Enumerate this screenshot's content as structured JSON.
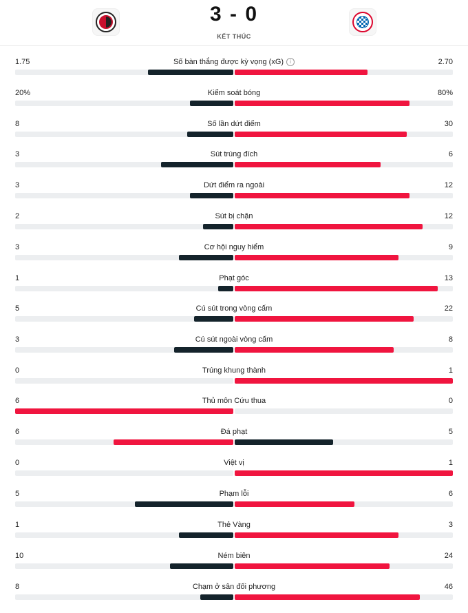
{
  "match": {
    "score": "3 - 0",
    "status": "KẾT THÚC",
    "home_crest_icon": "feyenoord-crest-icon",
    "away_crest_icon": "bayern-munich-crest-icon"
  },
  "colors": {
    "dark": "#14232b",
    "red": "#f0153f",
    "track": "#eceef0"
  },
  "stats": [
    {
      "label": "Số bàn thắng được kỳ vọng (xG)",
      "home": "1.75",
      "away": "2.70",
      "home_fill": 0.39,
      "away_fill": 0.61,
      "home_color": "dark",
      "away_color": "red",
      "info_icon": true
    },
    {
      "label": "Kiểm soát bóng",
      "home": "20%",
      "away": "80%",
      "home_fill": 0.2,
      "away_fill": 0.8,
      "home_color": "dark",
      "away_color": "red"
    },
    {
      "label": "Số lần dứt điểm",
      "home": "8",
      "away": "30",
      "home_fill": 0.21,
      "away_fill": 0.79,
      "home_color": "dark",
      "away_color": "red"
    },
    {
      "label": "Sút trúng đích",
      "home": "3",
      "away": "6",
      "home_fill": 0.33,
      "away_fill": 0.67,
      "home_color": "dark",
      "away_color": "red"
    },
    {
      "label": "Dứt điểm ra ngoài",
      "home": "3",
      "away": "12",
      "home_fill": 0.2,
      "away_fill": 0.8,
      "home_color": "dark",
      "away_color": "red"
    },
    {
      "label": "Sút bị chặn",
      "home": "2",
      "away": "12",
      "home_fill": 0.14,
      "away_fill": 0.86,
      "home_color": "dark",
      "away_color": "red"
    },
    {
      "label": "Cơ hội nguy hiểm",
      "home": "3",
      "away": "9",
      "home_fill": 0.25,
      "away_fill": 0.75,
      "home_color": "dark",
      "away_color": "red"
    },
    {
      "label": "Phạt góc",
      "home": "1",
      "away": "13",
      "home_fill": 0.07,
      "away_fill": 0.93,
      "home_color": "dark",
      "away_color": "red"
    },
    {
      "label": "Cú sút trong vòng cấm",
      "home": "5",
      "away": "22",
      "home_fill": 0.18,
      "away_fill": 0.82,
      "home_color": "dark",
      "away_color": "red"
    },
    {
      "label": "Cú sút ngoài vòng cấm",
      "home": "3",
      "away": "8",
      "home_fill": 0.27,
      "away_fill": 0.73,
      "home_color": "dark",
      "away_color": "red"
    },
    {
      "label": "Trúng khung thành",
      "home": "0",
      "away": "1",
      "home_fill": 0.0,
      "away_fill": 1.0,
      "home_color": "dark",
      "away_color": "red"
    },
    {
      "label": "Thủ môn Cứu thua",
      "home": "6",
      "away": "0",
      "home_fill": 1.0,
      "away_fill": 0.0,
      "home_color": "red",
      "away_color": "dark"
    },
    {
      "label": "Đá phạt",
      "home": "6",
      "away": "5",
      "home_fill": 0.55,
      "away_fill": 0.45,
      "home_color": "red",
      "away_color": "dark"
    },
    {
      "label": "Việt vị",
      "home": "0",
      "away": "1",
      "home_fill": 0.0,
      "away_fill": 1.0,
      "home_color": "dark",
      "away_color": "red"
    },
    {
      "label": "Phạm lỗi",
      "home": "5",
      "away": "6",
      "home_fill": 0.45,
      "away_fill": 0.55,
      "home_color": "dark",
      "away_color": "red"
    },
    {
      "label": "Thẻ Vàng",
      "home": "1",
      "away": "3",
      "home_fill": 0.25,
      "away_fill": 0.75,
      "home_color": "dark",
      "away_color": "red"
    },
    {
      "label": "Ném biên",
      "home": "10",
      "away": "24",
      "home_fill": 0.29,
      "away_fill": 0.71,
      "home_color": "dark",
      "away_color": "red"
    },
    {
      "label": "Chạm ở sân đối phương",
      "home": "8",
      "away": "46",
      "home_fill": 0.15,
      "away_fill": 0.85,
      "home_color": "dark",
      "away_color": "red"
    }
  ]
}
